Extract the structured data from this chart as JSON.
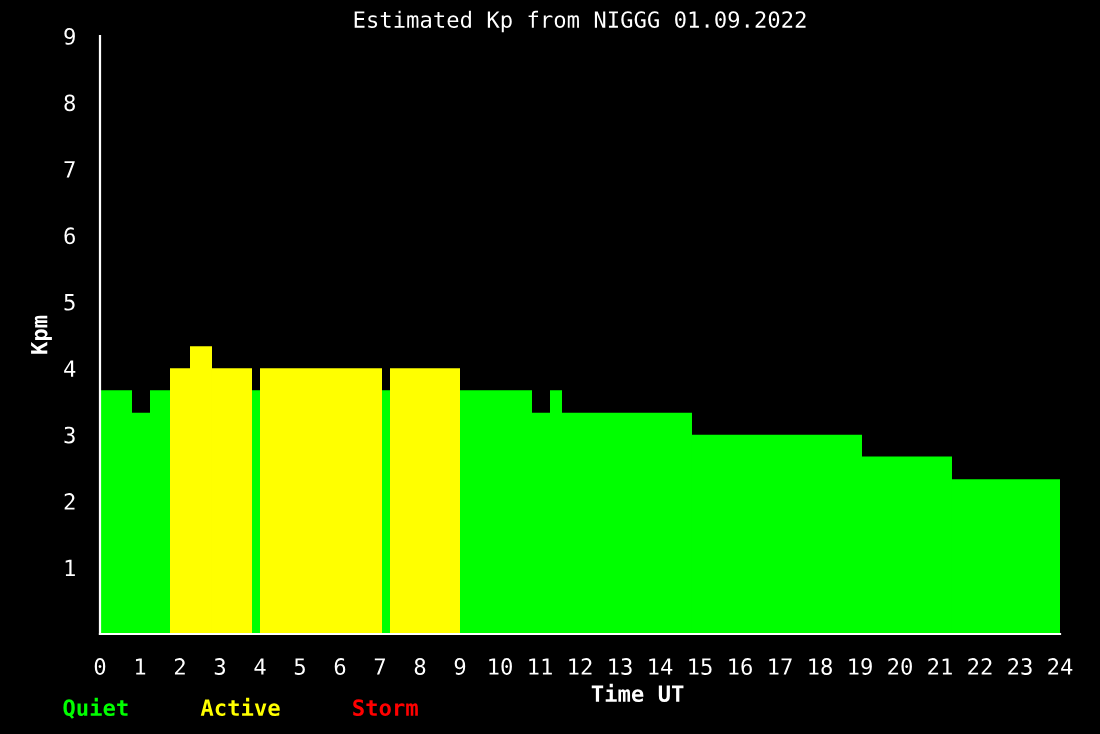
{
  "chart_data": {
    "type": "histogram",
    "title": "Estimated Kp from NIGGG 01.09.2022",
    "xlabel": "Time UT",
    "ylabel": "Kpm",
    "bins": [
      0,
      0.8,
      1.25,
      1.75,
      2.25,
      2.8,
      3.8,
      4,
      7.05,
      7.25,
      9,
      10.8,
      11.25,
      11.55,
      14.8,
      19.05,
      21.3,
      24
    ],
    "series": [
      {
        "name": "Quiet",
        "color": "#00ff00",
        "values": [
          3.67,
          3.33,
          3.67,
          null,
          null,
          null,
          3.67,
          null,
          3.67,
          null,
          3.67,
          3.33,
          3.67,
          3.33,
          3.0,
          2.67,
          2.33
        ]
      },
      {
        "name": "Active",
        "color": "#ffff00",
        "values": [
          null,
          null,
          null,
          4.0,
          4.33,
          4.0,
          null,
          4.0,
          null,
          4.0,
          null,
          null,
          null,
          null,
          null,
          null,
          null
        ]
      }
    ],
    "annotations": [
      "Storm"
    ],
    "xlim": [
      0,
      24
    ],
    "ylim": [
      0,
      9
    ],
    "xticks": [
      0,
      1,
      2,
      3,
      4,
      5,
      6,
      7,
      8,
      9,
      10,
      11,
      12,
      13,
      14,
      15,
      16,
      17,
      18,
      19,
      20,
      21,
      22,
      23,
      24
    ],
    "yticks": [
      1,
      2,
      3,
      4,
      5,
      6,
      7,
      8,
      9
    ],
    "legend": "bottom left",
    "grid": false
  }
}
